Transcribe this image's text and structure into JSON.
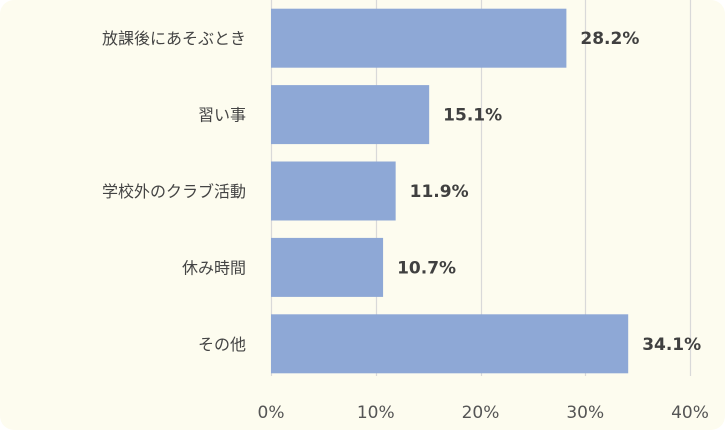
{
  "chart_data": {
    "type": "bar",
    "orientation": "horizontal",
    "title": "",
    "xlabel": "",
    "ylabel": "",
    "categories": [
      "放課後にあそぶとき",
      "習い事",
      "学校外のクラブ活動",
      "休み時間",
      "その他"
    ],
    "values": [
      28.2,
      15.1,
      11.9,
      10.7,
      34.1
    ],
    "data_labels": [
      "28.2%",
      "15.1%",
      "11.9%",
      "10.7%",
      "34.1%"
    ],
    "xlim": [
      0,
      40
    ],
    "x_ticks": [
      0,
      10,
      20,
      30,
      40
    ],
    "x_tick_labels": [
      "0%",
      "10%",
      "20%",
      "30%",
      "40%"
    ],
    "grid": true,
    "legend": "none",
    "bar_color": "#8ea8d6",
    "background_color": "#fdfcef",
    "grid_color": "#d9d9d9"
  }
}
